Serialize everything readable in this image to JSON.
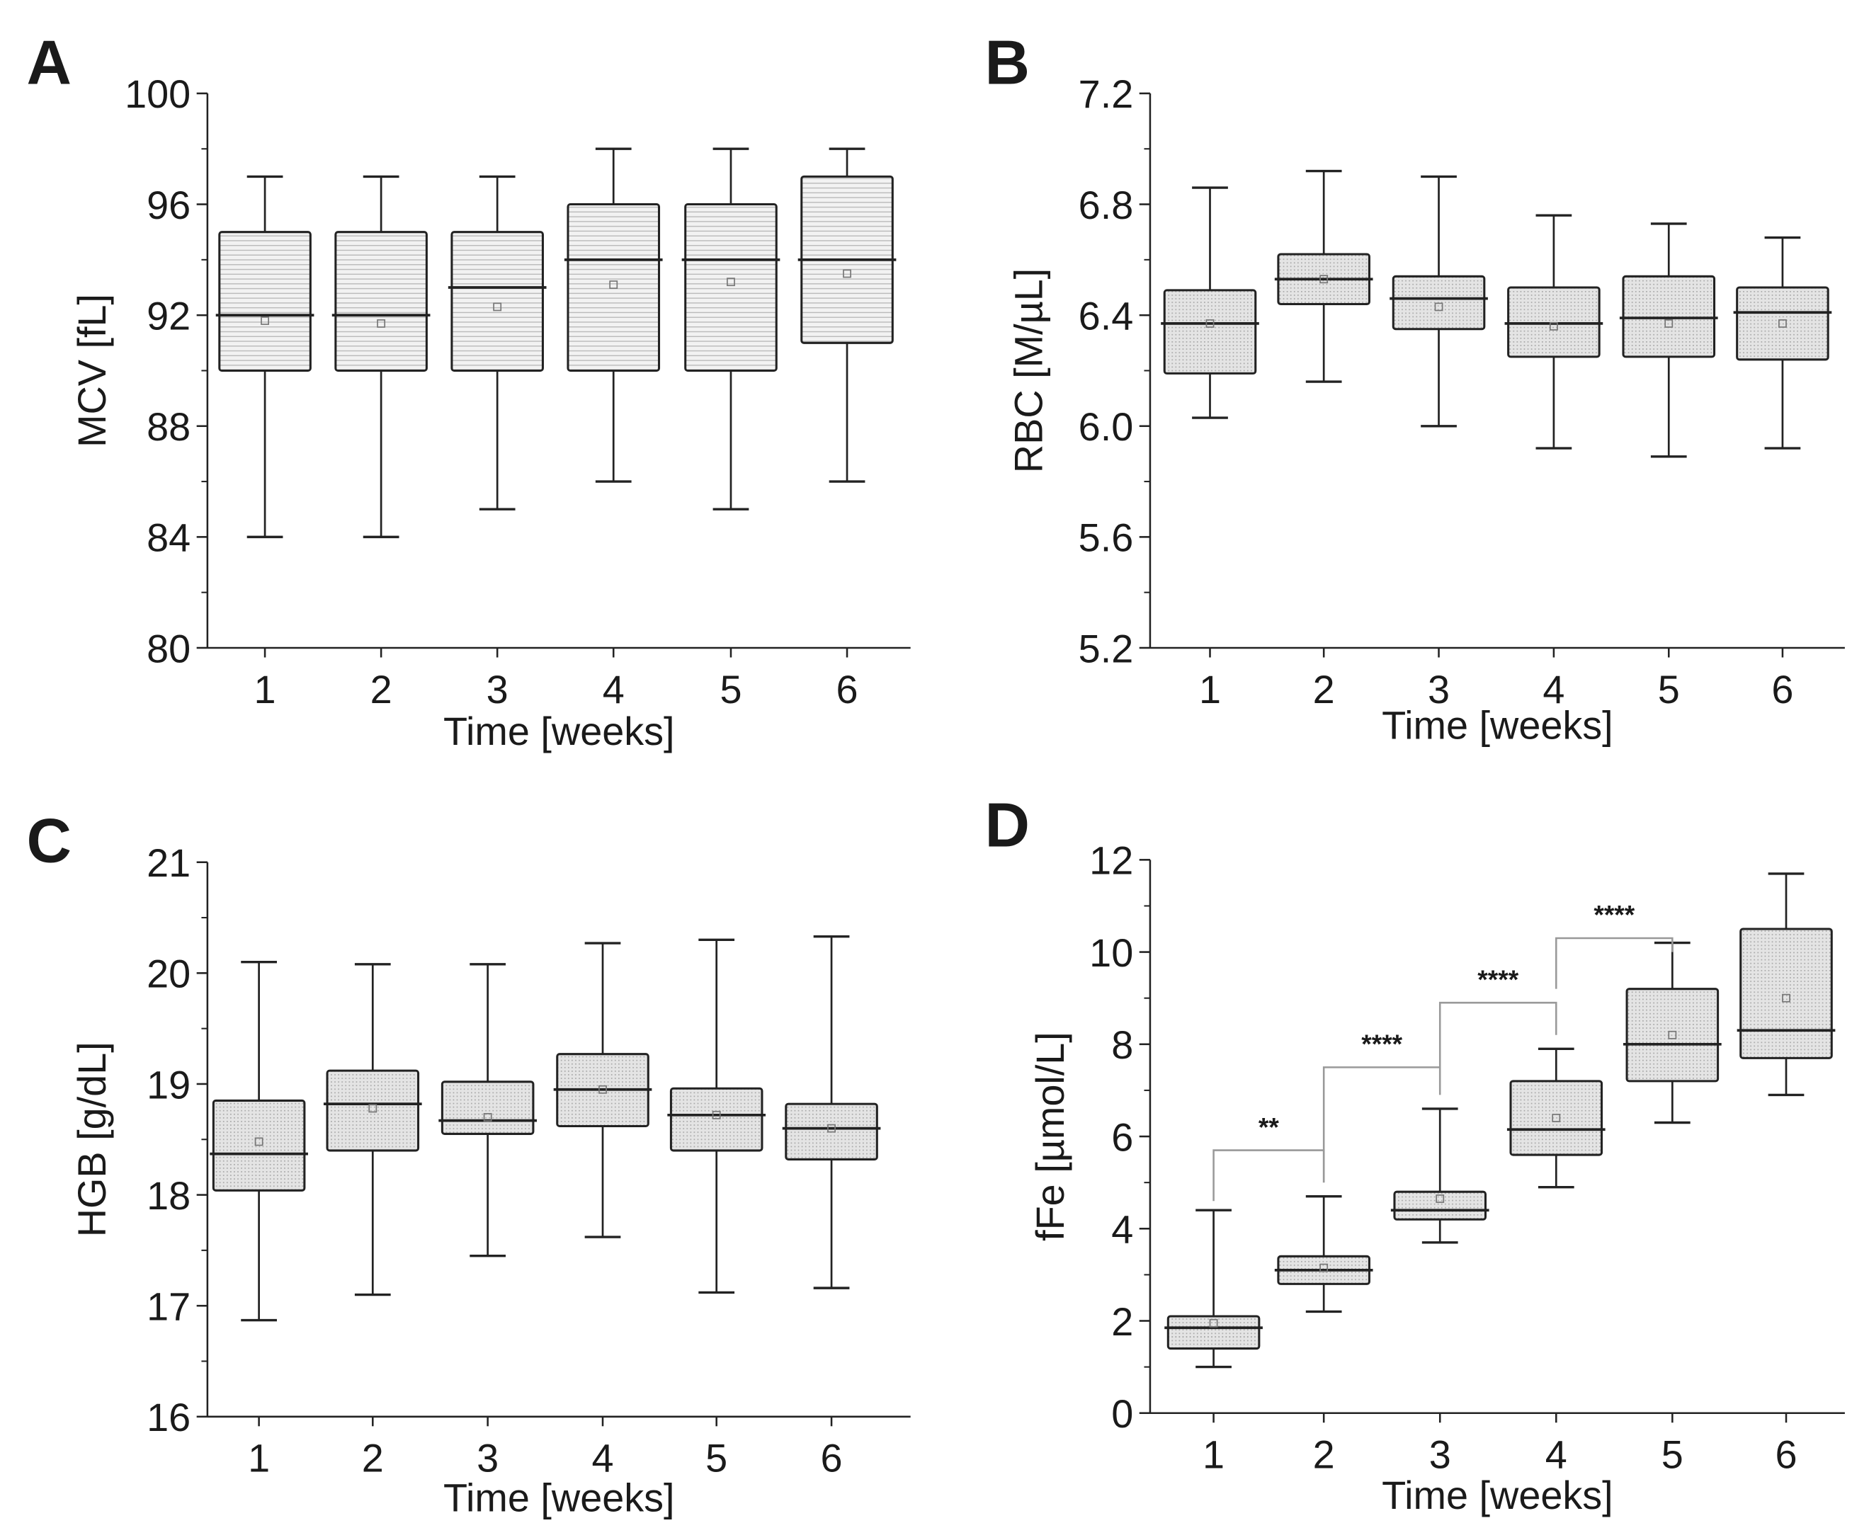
{
  "chart_data": [
    {
      "panel": "A",
      "type": "box",
      "ylabel": "MCV [fL]",
      "xlabel": "Time [weeks]",
      "ylim": [
        80,
        100
      ],
      "yticks": [
        80,
        84,
        88,
        92,
        96,
        100
      ],
      "yminor": 2,
      "categories": [
        "1",
        "2",
        "3",
        "4",
        "5",
        "6"
      ],
      "fill": "hlines",
      "boxes": [
        {
          "min": 84,
          "q1": 90,
          "median": 92,
          "q3": 95,
          "max": 97,
          "mean": 91.8
        },
        {
          "min": 84,
          "q1": 90,
          "median": 92,
          "q3": 95,
          "max": 97,
          "mean": 91.7
        },
        {
          "min": 85,
          "q1": 90,
          "median": 93,
          "q3": 95,
          "max": 97,
          "mean": 92.3
        },
        {
          "min": 86,
          "q1": 90,
          "median": 94,
          "q3": 96,
          "max": 98,
          "mean": 93.1
        },
        {
          "min": 85,
          "q1": 90,
          "median": 94,
          "q3": 96,
          "max": 98,
          "mean": 93.2
        },
        {
          "min": 86,
          "q1": 91,
          "median": 94,
          "q3": 97,
          "max": 98,
          "mean": 93.5
        }
      ],
      "brackets": []
    },
    {
      "panel": "B",
      "type": "box",
      "ylabel": "RBC [M/µL]",
      "xlabel": "Time [weeks]",
      "ylim": [
        5.2,
        7.2
      ],
      "yticks": [
        "5.2",
        "5.6",
        "6.0",
        "6.4",
        "6.8",
        "7.2"
      ],
      "yminor": 0.2,
      "categories": [
        "1",
        "2",
        "3",
        "4",
        "5",
        "6"
      ],
      "fill": "dots",
      "boxes": [
        {
          "min": 6.03,
          "q1": 6.19,
          "median": 6.37,
          "q3": 6.49,
          "max": 6.86,
          "mean": 6.37
        },
        {
          "min": 6.16,
          "q1": 6.44,
          "median": 6.53,
          "q3": 6.62,
          "max": 6.92,
          "mean": 6.53
        },
        {
          "min": 6.0,
          "q1": 6.35,
          "median": 6.46,
          "q3": 6.54,
          "max": 6.9,
          "mean": 6.43
        },
        {
          "min": 5.92,
          "q1": 6.25,
          "median": 6.37,
          "q3": 6.5,
          "max": 6.76,
          "mean": 6.36
        },
        {
          "min": 5.89,
          "q1": 6.25,
          "median": 6.39,
          "q3": 6.54,
          "max": 6.73,
          "mean": 6.37
        },
        {
          "min": 5.92,
          "q1": 6.24,
          "median": 6.41,
          "q3": 6.5,
          "max": 6.68,
          "mean": 6.37
        }
      ],
      "brackets": []
    },
    {
      "panel": "C",
      "type": "box",
      "ylabel": "HGB [g/dL]",
      "xlabel": "Time [weeks]",
      "ylim": [
        16,
        21
      ],
      "yticks": [
        16,
        17,
        18,
        19,
        20,
        21
      ],
      "yminor": 0.5,
      "categories": [
        "1",
        "2",
        "3",
        "4",
        "5",
        "6"
      ],
      "fill": "dots",
      "boxes": [
        {
          "min": 16.87,
          "q1": 18.04,
          "median": 18.37,
          "q3": 18.85,
          "max": 20.1,
          "mean": 18.48
        },
        {
          "min": 17.1,
          "q1": 18.4,
          "median": 18.82,
          "q3": 19.12,
          "max": 20.08,
          "mean": 18.78
        },
        {
          "min": 17.45,
          "q1": 18.55,
          "median": 18.67,
          "q3": 19.02,
          "max": 20.08,
          "mean": 18.7
        },
        {
          "min": 17.62,
          "q1": 18.62,
          "median": 18.95,
          "q3": 19.27,
          "max": 20.27,
          "mean": 18.95
        },
        {
          "min": 17.12,
          "q1": 18.4,
          "median": 18.72,
          "q3": 18.96,
          "max": 20.3,
          "mean": 18.72
        },
        {
          "min": 17.16,
          "q1": 18.32,
          "median": 18.6,
          "q3": 18.82,
          "max": 20.33,
          "mean": 18.6
        }
      ],
      "brackets": []
    },
    {
      "panel": "D",
      "type": "box",
      "ylabel": "fFe [µmol/L]",
      "xlabel": "Time [weeks]",
      "ylim": [
        0,
        12
      ],
      "yticks": [
        0,
        2,
        4,
        6,
        8,
        10,
        12
      ],
      "yminor": 1,
      "categories": [
        "1",
        "2",
        "3",
        "4",
        "5",
        "6"
      ],
      "fill": "dots",
      "boxes": [
        {
          "min": 1.0,
          "q1": 1.4,
          "median": 1.85,
          "q3": 2.1,
          "max": 4.4,
          "mean": 1.95
        },
        {
          "min": 2.2,
          "q1": 2.8,
          "median": 3.1,
          "q3": 3.4,
          "max": 4.7,
          "mean": 3.15
        },
        {
          "min": 3.7,
          "q1": 4.2,
          "median": 4.4,
          "q3": 4.8,
          "max": 6.6,
          "mean": 4.65
        },
        {
          "min": 4.9,
          "q1": 5.6,
          "median": 6.15,
          "q3": 7.2,
          "max": 7.9,
          "mean": 6.4
        },
        {
          "min": 6.3,
          "q1": 7.2,
          "median": 8.0,
          "q3": 9.2,
          "max": 10.2,
          "mean": 8.2
        },
        {
          "min": 6.9,
          "q1": 7.7,
          "median": 8.3,
          "q3": 10.5,
          "max": 11.7,
          "mean": 9.0
        }
      ],
      "brackets": [
        {
          "from": 1,
          "to": 2,
          "level": 5.7,
          "left_end": 4.6,
          "right_end": 5.0,
          "label": "**"
        },
        {
          "from": 2,
          "to": 3,
          "level": 7.5,
          "left_end": 5.0,
          "right_end": 6.9,
          "label": "****"
        },
        {
          "from": 3,
          "to": 4,
          "level": 8.9,
          "left_end": 7.0,
          "right_end": 8.2,
          "label": "****"
        },
        {
          "from": 4,
          "to": 5,
          "level": 10.3,
          "left_end": 9.2,
          "right_end": 10.0,
          "label": "****"
        }
      ]
    }
  ]
}
